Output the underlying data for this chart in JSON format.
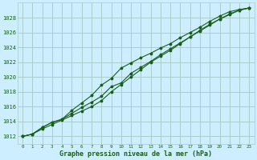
{
  "xlabel": "Graphe pression niveau de la mer (hPa)",
  "background_color": "#cceeff",
  "grid_color": "#aacccc",
  "line_color": "#1a5e1a",
  "xlim": [
    -0.5,
    23.5
  ],
  "ylim": [
    1011.0,
    1030.0
  ],
  "yticks": [
    1012,
    1014,
    1016,
    1018,
    1020,
    1022,
    1024,
    1026,
    1028
  ],
  "xticks": [
    0,
    1,
    2,
    3,
    4,
    5,
    6,
    7,
    8,
    9,
    10,
    11,
    12,
    13,
    14,
    15,
    16,
    17,
    18,
    19,
    20,
    21,
    22,
    23
  ],
  "series": [
    [
      1012.0,
      1012.3,
      1013.2,
      1013.9,
      1014.3,
      1015.1,
      1015.9,
      1016.6,
      1017.4,
      1018.7,
      1019.2,
      1020.5,
      1021.3,
      1022.1,
      1023.0,
      1023.8,
      1024.6,
      1025.4,
      1026.2,
      1027.0,
      1027.8,
      1028.5,
      1029.0,
      1029.3
    ],
    [
      1012.0,
      1012.3,
      1013.2,
      1013.9,
      1014.3,
      1015.5,
      1016.5,
      1017.5,
      1018.9,
      1019.8,
      1021.2,
      1021.9,
      1022.6,
      1023.2,
      1023.9,
      1024.5,
      1025.3,
      1026.0,
      1026.7,
      1027.5,
      1028.2,
      1028.8,
      1029.1,
      1029.3
    ],
    [
      1012.0,
      1012.3,
      1013.0,
      1013.6,
      1014.2,
      1014.8,
      1015.4,
      1016.0,
      1016.8,
      1018.0,
      1019.0,
      1020.0,
      1021.0,
      1022.0,
      1022.8,
      1023.6,
      1024.5,
      1025.4,
      1026.3,
      1027.1,
      1027.8,
      1028.4,
      1029.0,
      1029.3
    ]
  ]
}
